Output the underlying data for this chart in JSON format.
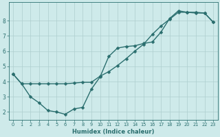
{
  "xlabel": "Humidex (Indice chaleur)",
  "bg_color": "#ceeaea",
  "line_color": "#2a6e6e",
  "grid_color": "#aecece",
  "xlim": [
    -0.5,
    23.5
  ],
  "ylim": [
    1.5,
    9.2
  ],
  "yticks": [
    2,
    3,
    4,
    5,
    6,
    7,
    8
  ],
  "xticks": [
    0,
    1,
    2,
    3,
    4,
    5,
    6,
    7,
    8,
    9,
    10,
    11,
    12,
    13,
    14,
    15,
    16,
    17,
    18,
    19,
    20,
    21,
    22,
    23
  ],
  "curve1": {
    "x": [
      0,
      1,
      2,
      3,
      4,
      5,
      6,
      7,
      8,
      9,
      10,
      11,
      12,
      13,
      14,
      15,
      16,
      17,
      18,
      19,
      20,
      21,
      22,
      23
    ],
    "y": [
      4.5,
      3.85,
      3.0,
      2.6,
      2.1,
      2.0,
      1.85,
      2.2,
      2.3,
      3.5,
      4.3,
      5.65,
      6.2,
      6.3,
      6.35,
      6.5,
      6.6,
      7.25,
      8.15,
      8.65,
      8.55,
      8.55,
      8.5,
      7.9
    ]
  },
  "curve2": {
    "x": [
      0,
      1,
      2,
      3,
      4,
      5,
      6,
      7,
      8,
      9,
      10,
      11,
      12,
      13,
      14,
      15,
      16,
      17,
      18,
      19,
      20,
      21,
      22,
      23
    ],
    "y": [
      4.5,
      3.85,
      3.85,
      3.85,
      3.85,
      3.85,
      3.85,
      3.9,
      3.95,
      3.95,
      4.35,
      4.65,
      5.05,
      5.5,
      6.0,
      6.45,
      7.1,
      7.65,
      8.1,
      8.55,
      8.55,
      8.5,
      8.5,
      7.9
    ]
  },
  "marker_size": 2.5,
  "line_width": 1.0
}
